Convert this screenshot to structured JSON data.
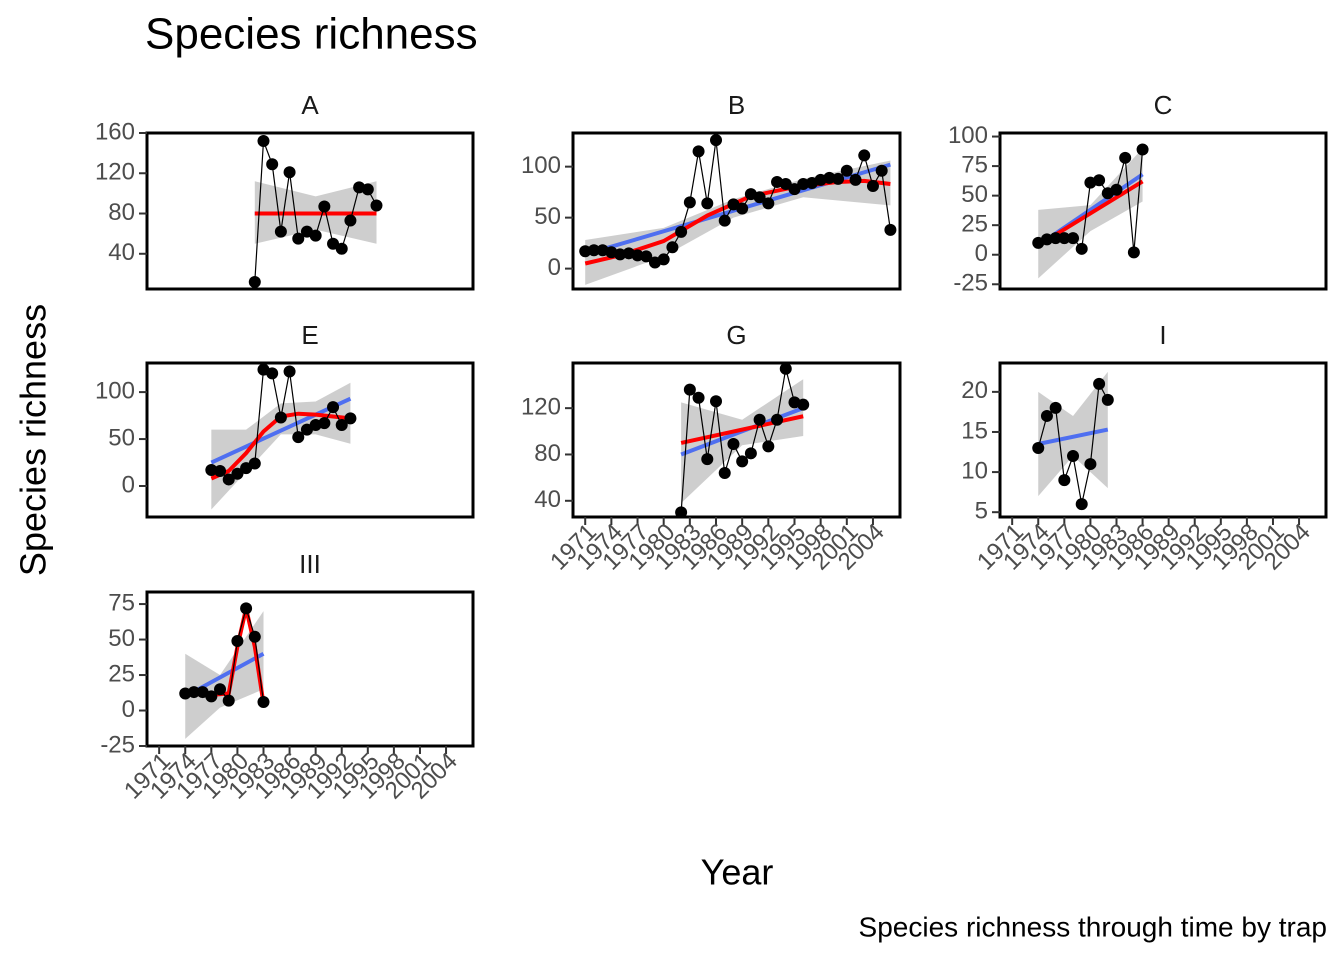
{
  "title": "Species richness",
  "y_label": "Species richness",
  "x_label": "Year",
  "caption": "Species richness through time by trap",
  "chart_data": [
    {
      "type": "line",
      "title": "A",
      "point_color": "#000000",
      "loess_color": "#ff0000",
      "lm_color": "#4f6ff0",
      "band_color": "#bdbdbd",
      "x": [
        1982,
        1983,
        1984,
        1985,
        1986,
        1987,
        1988,
        1989,
        1990,
        1991,
        1992,
        1993,
        1994,
        1995,
        1996
      ],
      "values": [
        12,
        152,
        129,
        62,
        121,
        55,
        62,
        58,
        87,
        50,
        45,
        73,
        106,
        104,
        88
      ],
      "lm_x": [
        1982,
        1996
      ],
      "lm": [
        80,
        80
      ],
      "loess_x": [
        1982,
        1996
      ],
      "loess": [
        80,
        80
      ],
      "band_x": [
        1982,
        1989,
        1996
      ],
      "band_lower": [
        50,
        64,
        50
      ],
      "band_upper": [
        112,
        97,
        112
      ],
      "xlim": [
        1969.6,
        2007.1
      ],
      "ylim": [
        5,
        160
      ],
      "yticks": [
        40,
        80,
        120,
        160
      ]
    },
    {
      "type": "line",
      "title": "B",
      "point_color": "#000000",
      "loess_color": "#ff0000",
      "lm_color": "#4f6ff0",
      "band_color": "#bdbdbd",
      "x": [
        1971,
        1972,
        1973,
        1974,
        1975,
        1976,
        1977,
        1978,
        1979,
        1980,
        1981,
        1982,
        1983,
        1984,
        1985,
        1986,
        1987,
        1988,
        1989,
        1990,
        1991,
        1992,
        1993,
        1994,
        1995,
        1996,
        1997,
        1998,
        1999,
        2000,
        2001,
        2002,
        2003,
        2004,
        2005,
        2006
      ],
      "values": [
        17,
        18,
        18,
        16,
        14,
        15,
        13,
        12,
        6,
        9,
        21,
        36,
        65,
        115,
        64,
        126,
        47,
        63,
        59,
        73,
        70,
        64,
        85,
        83,
        78,
        83,
        84,
        87,
        89,
        88,
        96,
        87,
        111,
        81,
        96,
        38
      ],
      "lm_x": [
        1971,
        2006
      ],
      "lm": [
        14,
        102
      ],
      "loess_x": [
        1971,
        1975,
        1980,
        1985,
        1990,
        1995,
        2000,
        2003,
        2006
      ],
      "loess": [
        5,
        13,
        27,
        52,
        71,
        80,
        85,
        86,
        83
      ],
      "band_x": [
        1971,
        1980,
        1988,
        1996,
        2006
      ],
      "band_lower": [
        -16,
        12,
        50,
        70,
        62
      ],
      "band_upper": [
        28,
        40,
        68,
        88,
        106
      ],
      "xlim": [
        1969.6,
        2007.1
      ],
      "ylim": [
        -20,
        133
      ],
      "yticks": [
        0,
        50,
        100
      ]
    },
    {
      "type": "line",
      "title": "C",
      "point_color": "#000000",
      "loess_color": "#ff0000",
      "lm_color": "#4f6ff0",
      "band_color": "#bdbdbd",
      "x": [
        1974,
        1975,
        1976,
        1977,
        1978,
        1979,
        1980,
        1981,
        1982,
        1983,
        1984,
        1985,
        1986
      ],
      "values": [
        10,
        13,
        14,
        14,
        14,
        5,
        61,
        63,
        52,
        55,
        82,
        2,
        89
      ],
      "lm_x": [
        1974,
        1986
      ],
      "lm": [
        8,
        68
      ],
      "loess_x": [
        1974,
        1986
      ],
      "loess": [
        8,
        62
      ],
      "band_x": [
        1974,
        1980,
        1986
      ],
      "band_lower": [
        -20,
        20,
        45
      ],
      "band_upper": [
        38,
        42,
        90
      ],
      "xlim": [
        1969.6,
        2007.1
      ],
      "ylim": [
        -29,
        103
      ],
      "yticks": [
        -25,
        0,
        25,
        50,
        75,
        100
      ]
    },
    {
      "type": "line",
      "title": "E",
      "point_color": "#000000",
      "loess_color": "#ff0000",
      "lm_color": "#4f6ff0",
      "band_color": "#bdbdbd",
      "x": [
        1977,
        1978,
        1979,
        1980,
        1981,
        1982,
        1983,
        1984,
        1985,
        1986,
        1987,
        1988,
        1989,
        1990,
        1991,
        1992,
        1993
      ],
      "values": [
        17,
        16,
        7,
        13,
        19,
        24,
        124,
        120,
        73,
        122,
        52,
        60,
        65,
        67,
        84,
        65,
        72
      ],
      "lm_x": [
        1977,
        1993
      ],
      "lm": [
        25,
        93
      ],
      "loess_x": [
        1977,
        1979,
        1981,
        1983,
        1985,
        1987,
        1989,
        1991,
        1993
      ],
      "loess": [
        8,
        16,
        35,
        58,
        74,
        77,
        76,
        74,
        72
      ],
      "band_x": [
        1977,
        1981,
        1985,
        1989,
        1993
      ],
      "band_lower": [
        -25,
        15,
        55,
        55,
        45
      ],
      "band_upper": [
        60,
        60,
        88,
        90,
        110
      ],
      "xlim": [
        1969.6,
        2007.1
      ],
      "ylim": [
        -33,
        131
      ],
      "yticks": [
        0,
        50,
        100
      ]
    },
    {
      "type": "line",
      "title": "G",
      "point_color": "#000000",
      "loess_color": "#ff0000",
      "lm_color": "#4f6ff0",
      "band_color": "#bdbdbd",
      "x": [
        1982,
        1983,
        1984,
        1985,
        1986,
        1987,
        1988,
        1989,
        1990,
        1991,
        1992,
        1993,
        1994,
        1995,
        1996
      ],
      "values": [
        30,
        136,
        129,
        76,
        126,
        64,
        89,
        74,
        81,
        110,
        87,
        110,
        154,
        125,
        123
      ],
      "lm_x": [
        1982,
        1996
      ],
      "lm": [
        80,
        120
      ],
      "loess_x": [
        1982,
        1996
      ],
      "loess": [
        90,
        113
      ],
      "band_x": [
        1982,
        1989,
        1996
      ],
      "band_lower": [
        38,
        88,
        96
      ],
      "band_upper": [
        125,
        110,
        145
      ],
      "xlim": [
        1969.6,
        2007.1
      ],
      "ylim": [
        26,
        159
      ],
      "yticks": [
        40,
        80,
        120
      ],
      "xticks": [
        1971,
        1974,
        1977,
        1980,
        1983,
        1986,
        1989,
        1992,
        1995,
        1998,
        2001,
        2004
      ]
    },
    {
      "type": "line",
      "title": "I",
      "point_color": "#000000",
      "lm_color": "#4f6ff0",
      "band_color": "#bdbdbd",
      "x": [
        1974,
        1975,
        1976,
        1977,
        1978,
        1979,
        1980,
        1981,
        1982
      ],
      "values": [
        13,
        17,
        18,
        9,
        12,
        6,
        11,
        21,
        19
      ],
      "lm_x": [
        1974,
        1982
      ],
      "lm": [
        13.5,
        15.3
      ],
      "band_x": [
        1974,
        1978,
        1982
      ],
      "band_lower": [
        7,
        12,
        8
      ],
      "band_upper": [
        20,
        17,
        22.5
      ],
      "xlim": [
        1969.6,
        2007.1
      ],
      "ylim": [
        4.4,
        23.6
      ],
      "yticks": [
        5,
        10,
        15,
        20
      ],
      "xticks": [
        1971,
        1974,
        1977,
        1980,
        1983,
        1986,
        1989,
        1992,
        1995,
        1998,
        2001,
        2004
      ]
    },
    {
      "type": "line",
      "title": "III",
      "point_color": "#000000",
      "loess_color": "#ff0000",
      "lm_color": "#4f6ff0",
      "band_color": "#bdbdbd",
      "x": [
        1974,
        1975,
        1976,
        1977,
        1978,
        1979,
        1980,
        1981,
        1982,
        1983
      ],
      "values": [
        12,
        13,
        13,
        10,
        15,
        7,
        49,
        72,
        52,
        6
      ],
      "lm_x": [
        1974,
        1983
      ],
      "lm": [
        10,
        40
      ],
      "loess_x": [
        1974,
        1977,
        1979,
        1980,
        1981,
        1982,
        1983
      ],
      "loess": [
        12,
        11,
        12,
        45,
        72,
        45,
        5
      ],
      "band_x": [
        1974,
        1978,
        1983
      ],
      "band_lower": [
        -20,
        2,
        15
      ],
      "band_upper": [
        40,
        25,
        70
      ],
      "xlim": [
        1969.6,
        2007.1
      ],
      "ylim": [
        -25,
        83.5
      ],
      "yticks": [
        -25,
        0,
        25,
        50,
        75
      ],
      "xticks": [
        1971,
        1974,
        1977,
        1980,
        1983,
        1986,
        1989,
        1992,
        1995,
        1998,
        2001,
        2004
      ]
    }
  ]
}
